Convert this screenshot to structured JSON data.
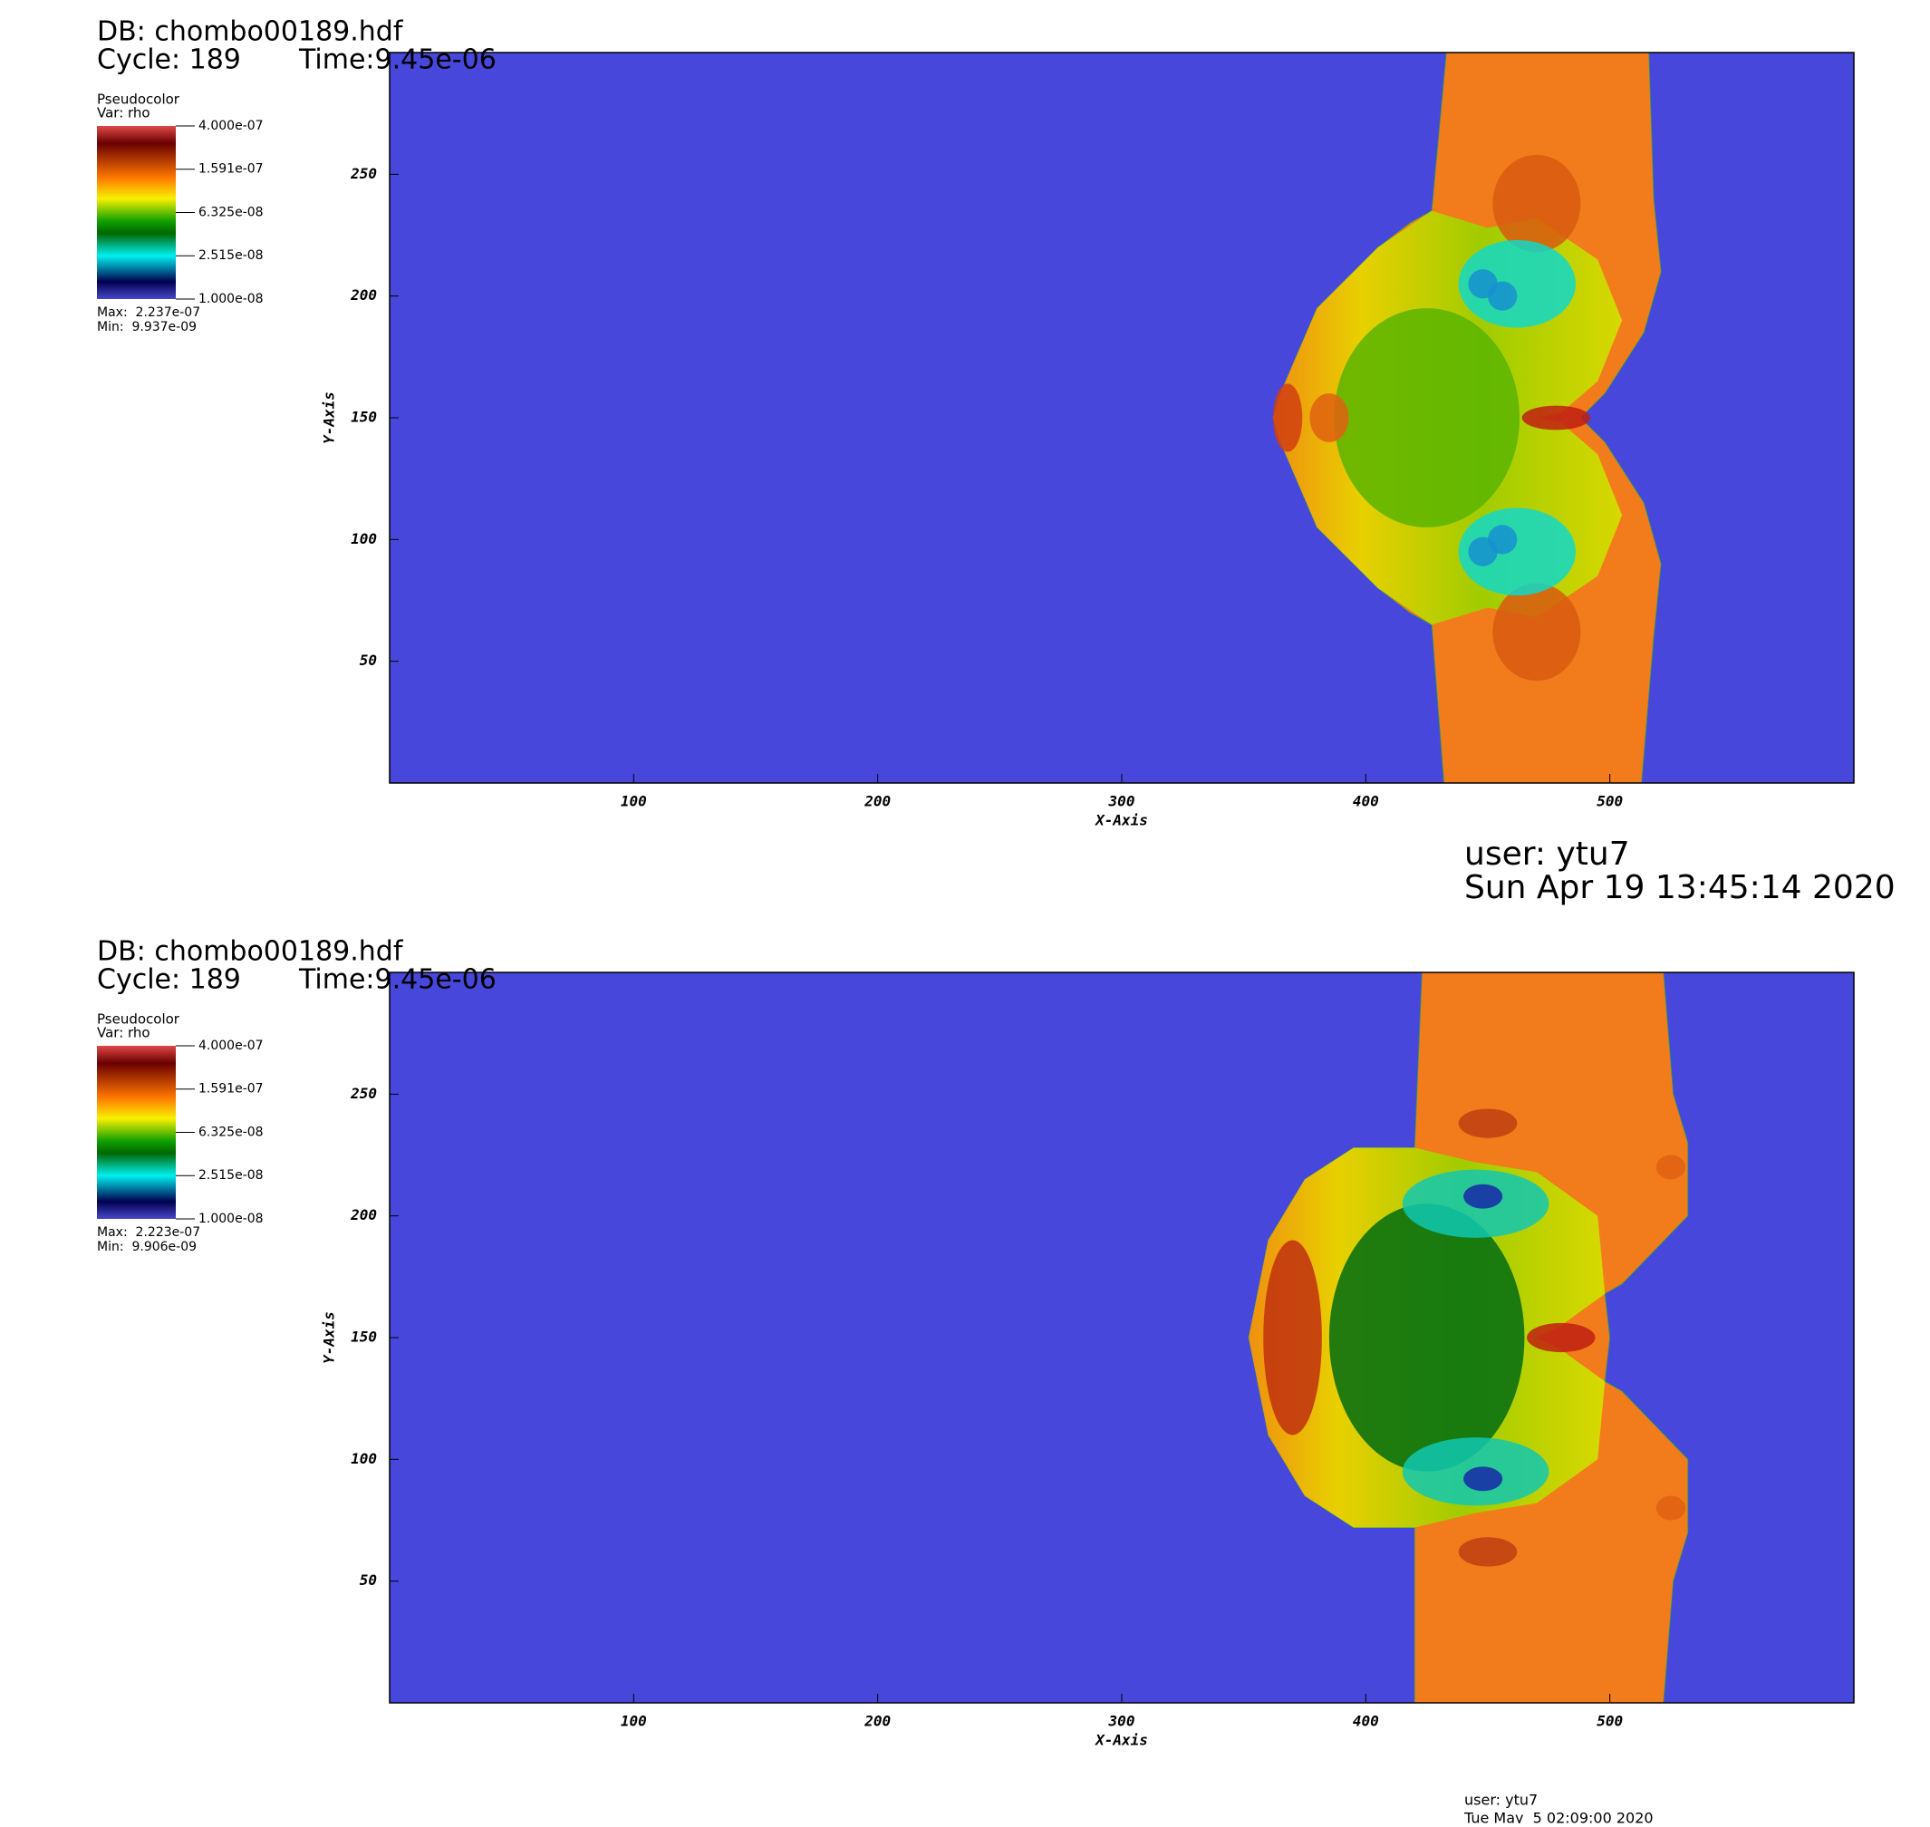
{
  "chart_data": [
    {
      "type": "pseudocolor",
      "db": "DB: chombo00189.hdf",
      "cycle": "Cycle: 189",
      "time": "Time:9.45e-06",
      "legend_title": "Pseudocolor",
      "legend_var": "Var: rho",
      "colorbar_log": true,
      "colorbar_lim": [
        1e-08,
        4e-07
      ],
      "colorbar_ticks": [
        {
          "value": 4e-07,
          "label": "4.000e-07"
        },
        {
          "value": 1.591e-07,
          "label": "1.591e-07"
        },
        {
          "value": 6.325e-08,
          "label": "6.325e-08"
        },
        {
          "value": 2.515e-08,
          "label": "2.515e-08"
        },
        {
          "value": 1e-08,
          "label": "1.000e-08"
        }
      ],
      "max_label": "Max:  2.237e-07",
      "min_label": "Min:  9.937e-09",
      "x_label": "X-Axis",
      "y_label": "Y-Axis",
      "xlim": [
        0,
        600
      ],
      "ylim": [
        0,
        300
      ],
      "xticks": [
        100,
        200,
        300,
        400,
        500
      ],
      "yticks": [
        50,
        100,
        150,
        200,
        250
      ],
      "user": "user: ytu7",
      "date": "Sun Apr 19 13:45:14 2020"
    },
    {
      "type": "pseudocolor",
      "db": "DB: chombo00189.hdf",
      "cycle": "Cycle: 189",
      "time": "Time:9.45e-06",
      "legend_title": "Pseudocolor",
      "legend_var": "Var: rho",
      "colorbar_log": true,
      "colorbar_lim": [
        1e-08,
        4e-07
      ],
      "colorbar_ticks": [
        {
          "value": 4e-07,
          "label": "4.000e-07"
        },
        {
          "value": 1.591e-07,
          "label": "1.591e-07"
        },
        {
          "value": 6.325e-08,
          "label": "6.325e-08"
        },
        {
          "value": 2.515e-08,
          "label": "2.515e-08"
        },
        {
          "value": 1e-08,
          "label": "1.000e-08"
        }
      ],
      "max_label": "Max:  2.223e-07",
      "min_label": "Min:  9.906e-09",
      "x_label": "X-Axis",
      "y_label": "Y-Axis",
      "xlim": [
        0,
        600
      ],
      "ylim": [
        0,
        300
      ],
      "xticks": [
        100,
        200,
        300,
        400,
        500
      ],
      "yticks": [
        50,
        100,
        150,
        200,
        250
      ],
      "user": "user: ytu7",
      "date": "Tue May  5 02:09:00 2020"
    }
  ]
}
